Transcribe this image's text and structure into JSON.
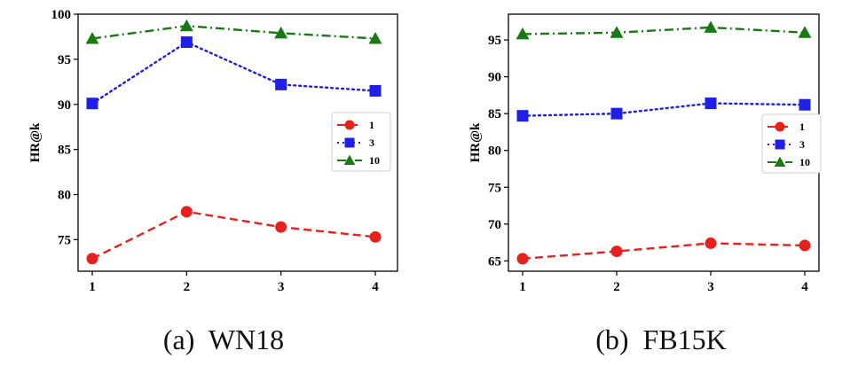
{
  "chart_data": [
    {
      "type": "line",
      "panel": "a",
      "caption": "(a)  WN18",
      "x": [
        1,
        2,
        3,
        4
      ],
      "x_tick_labels": [
        "1",
        "2",
        "3",
        "4"
      ],
      "ylabel": "HR@k",
      "ylim": [
        71.5,
        100
      ],
      "y_ticks": [
        75,
        80,
        85,
        90,
        95,
        100
      ],
      "y_tick_labels": [
        "75",
        "80",
        "85",
        "90",
        "95",
        "100"
      ],
      "legend_position": "center-right",
      "series": [
        {
          "name": "1",
          "values": [
            72.9,
            78.1,
            76.4,
            75.3
          ],
          "color": "#e8211c",
          "dash": "dashed",
          "marker": "circle"
        },
        {
          "name": "3",
          "values": [
            90.1,
            96.9,
            92.2,
            91.5
          ],
          "color": "#1f1fe6",
          "dash": "dotted",
          "marker": "square"
        },
        {
          "name": "10",
          "values": [
            97.3,
            98.7,
            97.9,
            97.3
          ],
          "color": "#197a14",
          "dash": "dash-dot",
          "marker": "triangle"
        }
      ]
    },
    {
      "type": "line",
      "panel": "b",
      "caption": "(b)  FB15K",
      "x": [
        1,
        2,
        3,
        4
      ],
      "x_tick_labels": [
        "1",
        "2",
        "3",
        "4"
      ],
      "ylabel": "HR@k",
      "ylim": [
        63.6,
        98.5
      ],
      "y_ticks": [
        65,
        70,
        75,
        80,
        85,
        90,
        95
      ],
      "y_tick_labels": [
        "65",
        "70",
        "75",
        "80",
        "85",
        "90",
        "95"
      ],
      "legend_position": "center-right",
      "series": [
        {
          "name": "1",
          "values": [
            65.3,
            66.3,
            67.4,
            67.1
          ],
          "color": "#e8211c",
          "dash": "dashed",
          "marker": "circle"
        },
        {
          "name": "3",
          "values": [
            84.7,
            85.0,
            86.4,
            86.2
          ],
          "color": "#1f1fe6",
          "dash": "dotted",
          "marker": "square"
        },
        {
          "name": "10",
          "values": [
            95.8,
            96.0,
            96.7,
            96.0
          ],
          "color": "#197a14",
          "dash": "dash-dot",
          "marker": "triangle"
        }
      ]
    }
  ]
}
